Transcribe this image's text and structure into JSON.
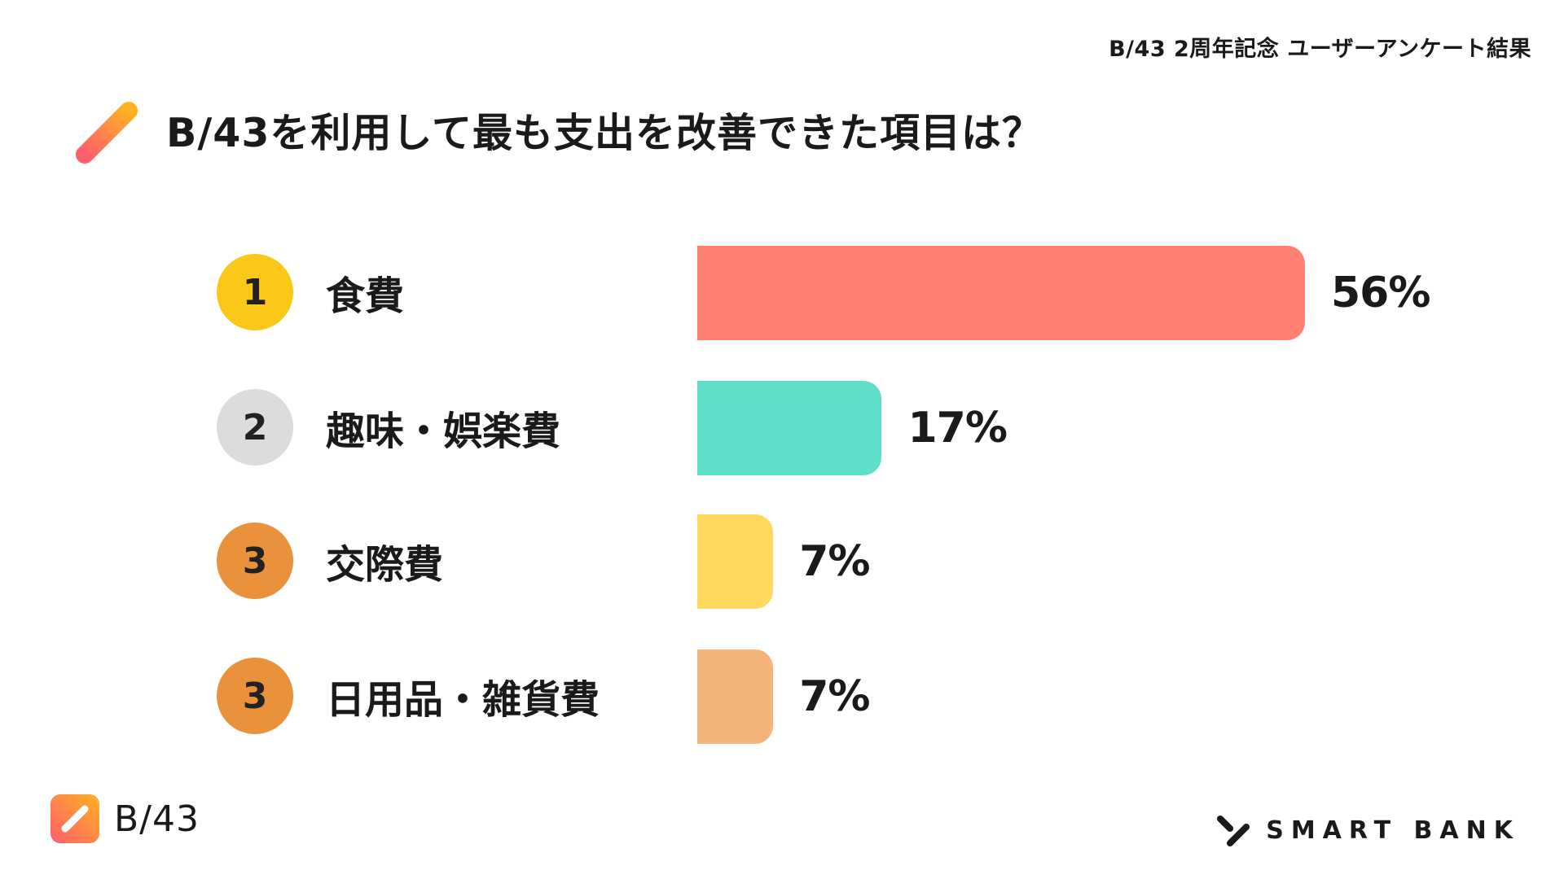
{
  "header": {
    "note": "B/43 2周年記念 ユーザーアンケート結果"
  },
  "title": "B/43を利用して最も支出を改善できた項目は？",
  "colors": {
    "rank1": "#FBC81A",
    "rank2": "#DCDCDC",
    "rank3": "#E9913B",
    "bar1": "#FF7F73",
    "bar2": "#60DFC8",
    "bar3": "#FFD860",
    "bar4": "#F2B478",
    "accent_start": "#FF5E6C",
    "accent_end": "#FFB223"
  },
  "chart_data": {
    "type": "bar",
    "orientation": "horizontal",
    "categories": [
      "食費",
      "趣味・娯楽費",
      "交際費",
      "日用品・雑貨費"
    ],
    "ranks": [
      "1",
      "2",
      "3",
      "3"
    ],
    "values": [
      56,
      17,
      7,
      7
    ],
    "value_labels": [
      "56%",
      "17%",
      "7%",
      "7%"
    ],
    "xlim": [
      0,
      56
    ],
    "grid": false
  },
  "footer": {
    "left_brand": "B/43",
    "right_brand": "SMART BANK"
  }
}
